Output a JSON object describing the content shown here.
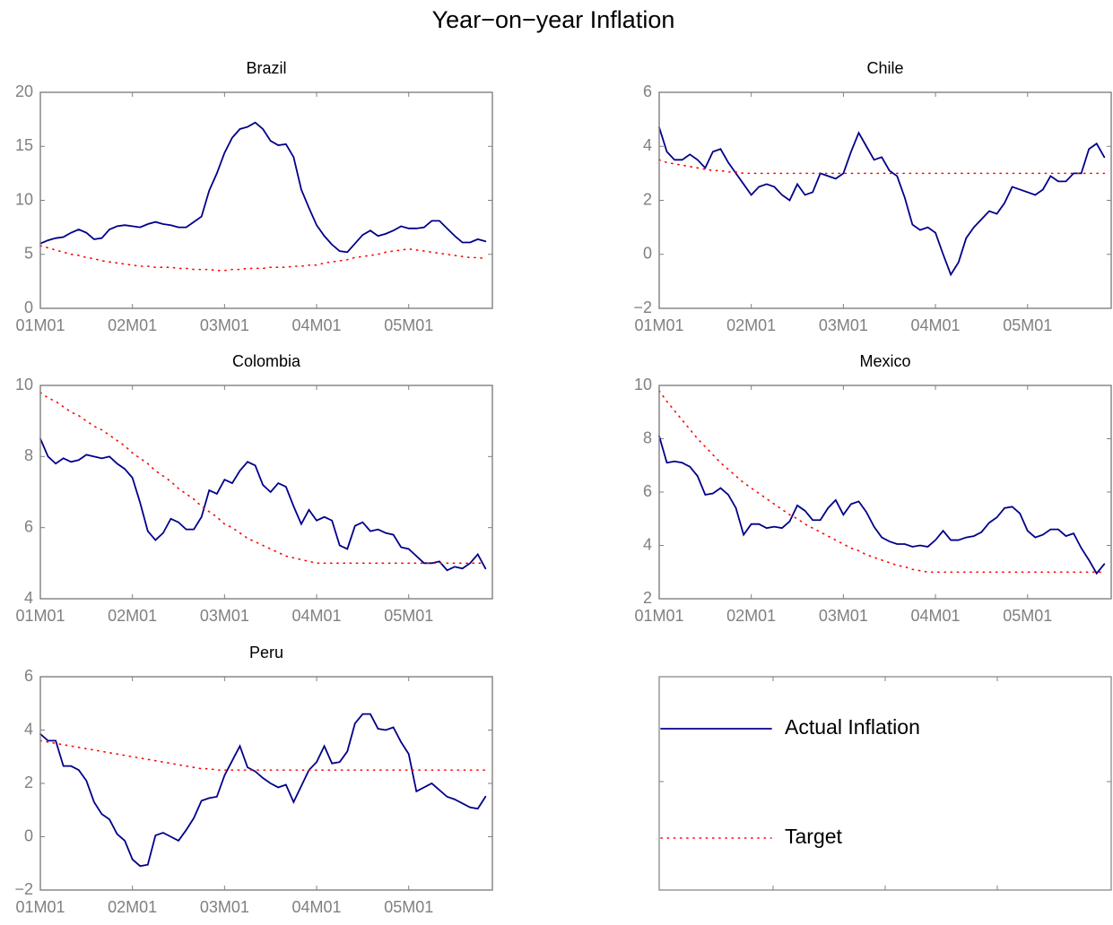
{
  "title": "Year−on−year Inflation",
  "chart_data": [
    {
      "type": "line",
      "title": "Brazil",
      "categories": [
        "01M01",
        null,
        null,
        null,
        null,
        null,
        null,
        null,
        null,
        null,
        null,
        null,
        "02M01",
        null,
        null,
        null,
        null,
        null,
        null,
        null,
        null,
        null,
        null,
        null,
        "03M01",
        null,
        null,
        null,
        null,
        null,
        null,
        null,
        null,
        null,
        null,
        null,
        "04M01",
        null,
        null,
        null,
        null,
        null,
        null,
        null,
        null,
        null,
        null,
        null,
        "05M01",
        null,
        null,
        null,
        null,
        null,
        null,
        null,
        null,
        null,
        null
      ],
      "ylim": [
        0,
        20
      ],
      "yticks": [
        0,
        5,
        10,
        15,
        20
      ],
      "series": [
        {
          "name": "Actual Inflation",
          "color": "#00008b",
          "style": "solid",
          "values": [
            6.0,
            6.3,
            6.5,
            6.6,
            7.0,
            7.3,
            7.0,
            6.4,
            6.5,
            7.3,
            7.6,
            7.7,
            7.6,
            7.5,
            7.8,
            8.0,
            7.8,
            7.7,
            7.5,
            7.5,
            8.0,
            8.5,
            10.9,
            12.5,
            14.4,
            15.8,
            16.6,
            16.8,
            17.2,
            16.6,
            15.5,
            15.1,
            15.2,
            14.0,
            11.0,
            9.3,
            7.7,
            6.7,
            5.9,
            5.3,
            5.2,
            6.0,
            6.8,
            7.2,
            6.7,
            6.9,
            7.2,
            7.6,
            7.4,
            7.4,
            7.5,
            8.1,
            8.1,
            7.4,
            6.7,
            6.1,
            6.1,
            6.4,
            6.2
          ]
        },
        {
          "name": "Target",
          "color": "#ff0000",
          "style": "dotted",
          "values": [
            5.8,
            5.6,
            5.4,
            5.2,
            5.0,
            4.9,
            4.7,
            4.6,
            4.4,
            4.3,
            4.2,
            4.1,
            4.0,
            3.9,
            3.9,
            3.8,
            3.8,
            3.8,
            3.7,
            3.7,
            3.6,
            3.6,
            3.6,
            3.5,
            3.5,
            3.6,
            3.6,
            3.7,
            3.7,
            3.7,
            3.8,
            3.8,
            3.8,
            3.9,
            3.9,
            4.0,
            4.0,
            4.2,
            4.3,
            4.4,
            4.5,
            4.7,
            4.8,
            4.9,
            5.0,
            5.2,
            5.3,
            5.4,
            5.5,
            5.4,
            5.3,
            5.2,
            5.1,
            5.0,
            4.9,
            4.8,
            4.7,
            4.7,
            4.6
          ]
        }
      ]
    },
    {
      "type": "line",
      "title": "Chile",
      "categories": [
        "01M01",
        null,
        null,
        null,
        null,
        null,
        null,
        null,
        null,
        null,
        null,
        null,
        "02M01",
        null,
        null,
        null,
        null,
        null,
        null,
        null,
        null,
        null,
        null,
        null,
        "03M01",
        null,
        null,
        null,
        null,
        null,
        null,
        null,
        null,
        null,
        null,
        null,
        "04M01",
        null,
        null,
        null,
        null,
        null,
        null,
        null,
        null,
        null,
        null,
        null,
        "05M01",
        null,
        null,
        null,
        null,
        null,
        null,
        null,
        null,
        null,
        null
      ],
      "ylim": [
        -2,
        6
      ],
      "yticks": [
        {
          "value": -2,
          "label": "−2"
        },
        0,
        2,
        4,
        6
      ],
      "series": [
        {
          "name": "Actual Inflation",
          "color": "#00008b",
          "style": "solid",
          "values": [
            4.7,
            3.8,
            3.5,
            3.5,
            3.7,
            3.5,
            3.2,
            3.8,
            3.9,
            3.4,
            3.0,
            2.6,
            2.2,
            2.5,
            2.6,
            2.5,
            2.2,
            2.0,
            2.6,
            2.2,
            2.3,
            3.0,
            2.9,
            2.8,
            3.0,
            3.8,
            4.5,
            4.0,
            3.5,
            3.6,
            3.1,
            2.9,
            2.1,
            1.1,
            0.9,
            1.0,
            0.8,
            0.0,
            -0.75,
            -0.3,
            0.6,
            1.0,
            1.3,
            1.6,
            1.5,
            1.9,
            2.5,
            2.4,
            2.3,
            2.2,
            2.4,
            2.9,
            2.7,
            2.7,
            3.0,
            3.0,
            3.9,
            4.1,
            3.6
          ]
        },
        {
          "name": "Target",
          "color": "#ff0000",
          "style": "dotted",
          "values": [
            3.5,
            3.4,
            3.35,
            3.3,
            3.25,
            3.2,
            3.15,
            3.1,
            3.1,
            3.05,
            3.05,
            3.0,
            3.0,
            3.0,
            3.0,
            3.0,
            3.0,
            3.0,
            3.0,
            3.0,
            3.0,
            3.0,
            3.0,
            3.0,
            3.0,
            3.0,
            3.0,
            3.0,
            3.0,
            3.0,
            3.0,
            3.0,
            3.0,
            3.0,
            3.0,
            3.0,
            3.0,
            3.0,
            3.0,
            3.0,
            3.0,
            3.0,
            3.0,
            3.0,
            3.0,
            3.0,
            3.0,
            3.0,
            3.0,
            3.0,
            3.0,
            3.0,
            3.0,
            3.0,
            3.0,
            3.0,
            3.0,
            3.0,
            3.0
          ]
        }
      ]
    },
    {
      "type": "line",
      "title": "Colombia",
      "categories": [
        "01M01",
        null,
        null,
        null,
        null,
        null,
        null,
        null,
        null,
        null,
        null,
        null,
        "02M01",
        null,
        null,
        null,
        null,
        null,
        null,
        null,
        null,
        null,
        null,
        null,
        "03M01",
        null,
        null,
        null,
        null,
        null,
        null,
        null,
        null,
        null,
        null,
        null,
        "04M01",
        null,
        null,
        null,
        null,
        null,
        null,
        null,
        null,
        null,
        null,
        null,
        "05M01",
        null,
        null,
        null,
        null,
        null,
        null,
        null,
        null,
        null,
        null
      ],
      "ylim": [
        4,
        10
      ],
      "yticks": [
        4,
        6,
        8,
        10
      ],
      "series": [
        {
          "name": "Actual Inflation",
          "color": "#00008b",
          "style": "solid",
          "values": [
            8.5,
            8.0,
            7.8,
            7.95,
            7.85,
            7.9,
            8.05,
            8.0,
            7.95,
            8.0,
            7.8,
            7.65,
            7.4,
            6.7,
            5.9,
            5.65,
            5.85,
            6.25,
            6.15,
            5.95,
            5.95,
            6.3,
            7.05,
            6.95,
            7.35,
            7.25,
            7.6,
            7.85,
            7.75,
            7.2,
            7.0,
            7.25,
            7.15,
            6.6,
            6.1,
            6.5,
            6.2,
            6.3,
            6.2,
            5.5,
            5.4,
            6.05,
            6.15,
            5.9,
            5.95,
            5.85,
            5.8,
            5.45,
            5.4,
            5.2,
            5.0,
            5.0,
            5.05,
            4.8,
            4.9,
            4.85,
            5.0,
            5.25,
            4.85
          ]
        },
        {
          "name": "Target",
          "color": "#ff0000",
          "style": "dotted",
          "values": [
            9.8,
            9.65,
            9.55,
            9.4,
            9.25,
            9.15,
            9.0,
            8.85,
            8.75,
            8.6,
            8.45,
            8.3,
            8.1,
            7.95,
            7.8,
            7.6,
            7.45,
            7.3,
            7.1,
            6.95,
            6.8,
            6.6,
            6.45,
            6.3,
            6.1,
            6.0,
            5.85,
            5.7,
            5.6,
            5.5,
            5.4,
            5.3,
            5.2,
            5.15,
            5.1,
            5.05,
            5.0,
            5.0,
            5.0,
            5.0,
            5.0,
            5.0,
            5.0,
            5.0,
            5.0,
            5.0,
            5.0,
            5.0,
            5.0,
            5.0,
            5.0,
            5.0,
            5.0,
            5.0,
            5.0,
            5.0,
            5.0,
            5.0,
            5.0
          ]
        }
      ]
    },
    {
      "type": "line",
      "title": "Mexico",
      "categories": [
        "01M01",
        null,
        null,
        null,
        null,
        null,
        null,
        null,
        null,
        null,
        null,
        null,
        "02M01",
        null,
        null,
        null,
        null,
        null,
        null,
        null,
        null,
        null,
        null,
        null,
        "03M01",
        null,
        null,
        null,
        null,
        null,
        null,
        null,
        null,
        null,
        null,
        null,
        "04M01",
        null,
        null,
        null,
        null,
        null,
        null,
        null,
        null,
        null,
        null,
        null,
        "05M01",
        null,
        null,
        null,
        null,
        null,
        null,
        null,
        null,
        null,
        null
      ],
      "ylim": [
        2,
        10
      ],
      "yticks": [
        2,
        4,
        6,
        8,
        10
      ],
      "series": [
        {
          "name": "Actual Inflation",
          "color": "#00008b",
          "style": "solid",
          "values": [
            8.1,
            7.1,
            7.15,
            7.1,
            6.95,
            6.6,
            5.9,
            5.95,
            6.15,
            5.9,
            5.4,
            4.4,
            4.8,
            4.8,
            4.65,
            4.7,
            4.65,
            4.9,
            5.5,
            5.3,
            4.95,
            4.95,
            5.4,
            5.7,
            5.15,
            5.55,
            5.65,
            5.25,
            4.7,
            4.3,
            4.15,
            4.05,
            4.05,
            3.95,
            4.0,
            3.95,
            4.2,
            4.55,
            4.2,
            4.2,
            4.3,
            4.35,
            4.5,
            4.85,
            5.05,
            5.4,
            5.45,
            5.2,
            4.55,
            4.3,
            4.4,
            4.6,
            4.6,
            4.35,
            4.45,
            3.9,
            3.45,
            2.95,
            3.3
          ]
        },
        {
          "name": "Target",
          "color": "#ff0000",
          "style": "dotted",
          "values": [
            9.8,
            9.4,
            9.05,
            8.7,
            8.35,
            8.0,
            7.7,
            7.4,
            7.1,
            6.85,
            6.6,
            6.35,
            6.15,
            5.95,
            5.75,
            5.55,
            5.35,
            5.15,
            5.0,
            4.8,
            4.65,
            4.5,
            4.35,
            4.2,
            4.05,
            3.9,
            3.8,
            3.65,
            3.55,
            3.45,
            3.35,
            3.25,
            3.2,
            3.1,
            3.05,
            3.0,
            3.0,
            3.0,
            3.0,
            3.0,
            3.0,
            3.0,
            3.0,
            3.0,
            3.0,
            3.0,
            3.0,
            3.0,
            3.0,
            3.0,
            3.0,
            3.0,
            3.0,
            3.0,
            3.0,
            3.0,
            3.0,
            3.0,
            3.0
          ]
        }
      ]
    },
    {
      "type": "line",
      "title": "Peru",
      "categories": [
        "01M01",
        null,
        null,
        null,
        null,
        null,
        null,
        null,
        null,
        null,
        null,
        null,
        "02M01",
        null,
        null,
        null,
        null,
        null,
        null,
        null,
        null,
        null,
        null,
        null,
        "03M01",
        null,
        null,
        null,
        null,
        null,
        null,
        null,
        null,
        null,
        null,
        null,
        "04M01",
        null,
        null,
        null,
        null,
        null,
        null,
        null,
        null,
        null,
        null,
        null,
        "05M01",
        null,
        null,
        null,
        null,
        null,
        null,
        null,
        null,
        null,
        null
      ],
      "ylim": [
        -2,
        6
      ],
      "yticks": [
        {
          "value": -2,
          "label": "−2"
        },
        0,
        2,
        4,
        6
      ],
      "series": [
        {
          "name": "Actual Inflation",
          "color": "#00008b",
          "style": "solid",
          "values": [
            3.85,
            3.6,
            3.6,
            2.65,
            2.65,
            2.5,
            2.1,
            1.3,
            0.85,
            0.65,
            0.1,
            -0.15,
            -0.85,
            -1.1,
            -1.05,
            0.05,
            0.15,
            0.0,
            -0.15,
            0.25,
            0.7,
            1.35,
            1.45,
            1.5,
            2.3,
            2.85,
            3.4,
            2.6,
            2.45,
            2.2,
            2.0,
            1.85,
            1.95,
            1.3,
            1.9,
            2.5,
            2.8,
            3.4,
            2.75,
            2.8,
            3.2,
            4.25,
            4.6,
            4.6,
            4.05,
            4.0,
            4.1,
            3.55,
            3.1,
            1.7,
            1.85,
            2.0,
            1.75,
            1.5,
            1.4,
            1.25,
            1.1,
            1.05,
            1.5
          ]
        },
        {
          "name": "Target",
          "color": "#ff0000",
          "style": "dotted",
          "values": [
            3.6,
            3.55,
            3.5,
            3.45,
            3.4,
            3.35,
            3.3,
            3.25,
            3.2,
            3.15,
            3.1,
            3.05,
            3.0,
            2.95,
            2.9,
            2.85,
            2.8,
            2.75,
            2.7,
            2.65,
            2.6,
            2.55,
            2.55,
            2.5,
            2.5,
            2.5,
            2.5,
            2.5,
            2.5,
            2.5,
            2.5,
            2.5,
            2.5,
            2.5,
            2.5,
            2.5,
            2.5,
            2.5,
            2.5,
            2.5,
            2.5,
            2.5,
            2.5,
            2.5,
            2.5,
            2.5,
            2.5,
            2.5,
            2.5,
            2.5,
            2.5,
            2.5,
            2.5,
            2.5,
            2.5,
            2.5,
            2.5,
            2.5,
            2.5
          ]
        }
      ]
    }
  ]
}
